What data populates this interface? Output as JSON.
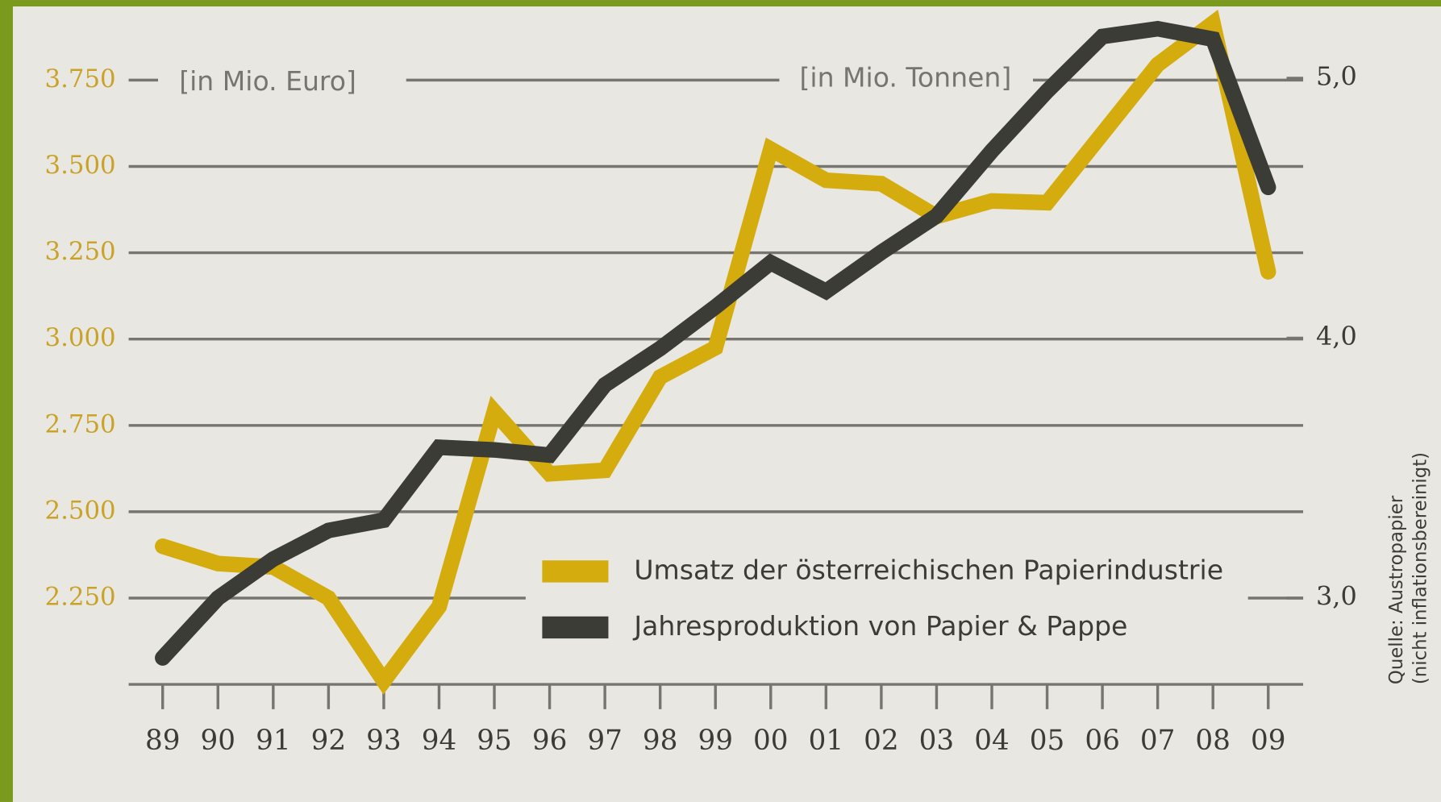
{
  "chart_data": {
    "type": "line",
    "categories": [
      "89",
      "90",
      "91",
      "92",
      "93",
      "94",
      "95",
      "96",
      "97",
      "98",
      "99",
      "00",
      "01",
      "02",
      "03",
      "04",
      "05",
      "06",
      "07",
      "08",
      "09"
    ],
    "series": [
      {
        "name": "Umsatz der österreichischen Papierindustrie",
        "color": "#d4ac0d",
        "values": [
          2400,
          2350,
          2340,
          2250,
          2010,
          2225,
          2790,
          2610,
          2620,
          2890,
          2975,
          3550,
          3460,
          3450,
          3355,
          3400,
          3395,
          3595,
          3795,
          3915,
          3195
        ]
      },
      {
        "name": "Jahresproduktion von Papier & Pappe",
        "color": "#3c3c37",
        "axis": "y2",
        "values": [
          2.77,
          3.0,
          3.15,
          3.26,
          3.3,
          3.58,
          3.57,
          3.55,
          3.82,
          3.96,
          4.12,
          4.29,
          4.18,
          4.33,
          4.47,
          4.72,
          4.95,
          5.16,
          5.19,
          5.15,
          4.58
        ]
      }
    ],
    "ylim": [
      2000,
      3950
    ],
    "yticks": [
      {
        "value": 2250,
        "label": "2.250"
      },
      {
        "value": 2500,
        "label": "2.500"
      },
      {
        "value": 2750,
        "label": "2.750"
      },
      {
        "value": 3000,
        "label": "3.000"
      },
      {
        "value": 3250,
        "label": "3.250"
      },
      {
        "value": 3500,
        "label": "3.500"
      },
      {
        "value": 3750,
        "label": "3.750"
      }
    ],
    "y2lim": [
      2.668,
      5.258
    ],
    "y2ticks": [
      {
        "value": 3,
        "label": "3,0"
      },
      {
        "value": 4,
        "label": "4,0"
      },
      {
        "value": 5,
        "label": "5,0"
      }
    ],
    "annotations": [
      "[in Mio. Euro]",
      "[in Mio. Tonnen]"
    ],
    "source": [
      "Quelle: Austropapier",
      "(nicht inflationsbereinigt)"
    ],
    "grid": true
  }
}
